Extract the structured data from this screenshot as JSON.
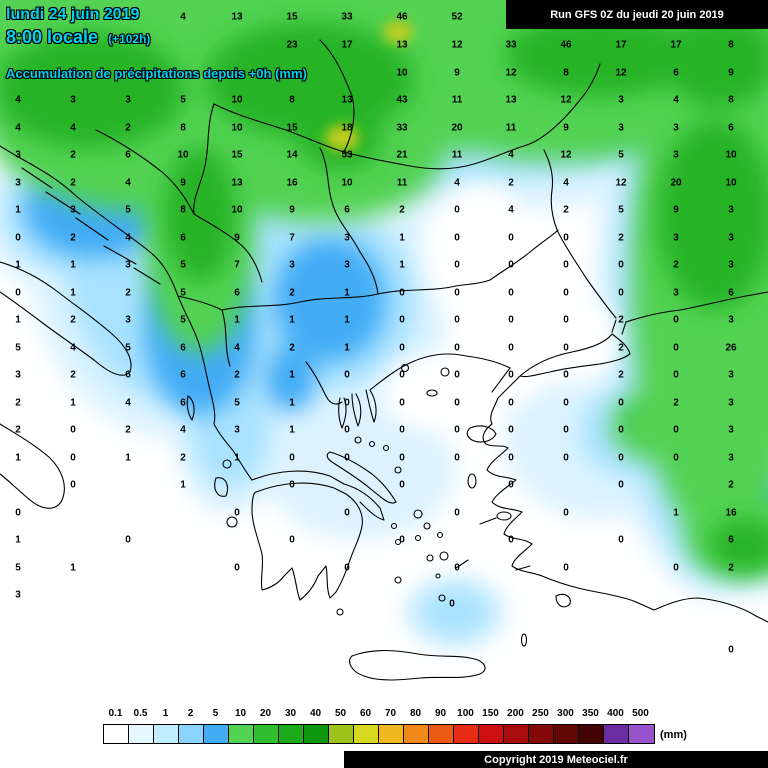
{
  "header": {
    "date_line": "lundi 24 juin 2019",
    "time_line": "8:00 locale",
    "forecast_offset": "(+102h)",
    "subtitle": "Accumulation de précipitations depuis +0h (mm)",
    "accent_color": "#00D2F0"
  },
  "run_banner": {
    "text": "Run GFS 0Z du jeudi 20 juin 2019",
    "bg": "#000000",
    "fg": "#FFFFFF"
  },
  "footer": {
    "copyright": "Copyright 2019 Meteociel.fr",
    "bg": "#000000",
    "fg": "#FFFFFF"
  },
  "legend": {
    "unit": "(mm)",
    "labels": [
      "0.1",
      "0.5",
      "1",
      "2",
      "5",
      "10",
      "20",
      "30",
      "40",
      "50",
      "60",
      "70",
      "80",
      "90",
      "100",
      "150",
      "200",
      "250",
      "300",
      "350",
      "400",
      "500"
    ],
    "colors": [
      "#FFFFFF",
      "#E4F6FF",
      "#C2ECFF",
      "#8AD3FF",
      "#42ACF5",
      "#52D252",
      "#2EBE2E",
      "#1AAA1A",
      "#0E960E",
      "#9EC41C",
      "#D8D820",
      "#F0B81E",
      "#F0881A",
      "#EC5A14",
      "#E62C12",
      "#CC1010",
      "#A80C0C",
      "#840808",
      "#620505",
      "#430303",
      "#6A2EA2",
      "#9852CC"
    ]
  },
  "map": {
    "background": "#FFFFFF",
    "values": [
      [
        183,
        17,
        "4"
      ],
      [
        237,
        17,
        "13"
      ],
      [
        292,
        17,
        "15"
      ],
      [
        347,
        17,
        "33"
      ],
      [
        402,
        17,
        "46"
      ],
      [
        457,
        17,
        "52"
      ],
      [
        292,
        45,
        "23"
      ],
      [
        347,
        45,
        "17"
      ],
      [
        402,
        45,
        "13"
      ],
      [
        457,
        45,
        "12"
      ],
      [
        511,
        45,
        "33"
      ],
      [
        566,
        45,
        "46"
      ],
      [
        621,
        45,
        "17"
      ],
      [
        676,
        45,
        "17"
      ],
      [
        731,
        45,
        "8"
      ],
      [
        402,
        73,
        "10"
      ],
      [
        457,
        73,
        "9"
      ],
      [
        511,
        73,
        "12"
      ],
      [
        566,
        73,
        "8"
      ],
      [
        621,
        73,
        "12"
      ],
      [
        676,
        73,
        "6"
      ],
      [
        731,
        73,
        "9"
      ],
      [
        18,
        100,
        "4"
      ],
      [
        73,
        100,
        "3"
      ],
      [
        128,
        100,
        "3"
      ],
      [
        183,
        100,
        "5"
      ],
      [
        237,
        100,
        "10"
      ],
      [
        292,
        100,
        "8"
      ],
      [
        347,
        100,
        "13"
      ],
      [
        402,
        100,
        "43"
      ],
      [
        457,
        100,
        "11"
      ],
      [
        511,
        100,
        "13"
      ],
      [
        566,
        100,
        "12"
      ],
      [
        621,
        100,
        "3"
      ],
      [
        676,
        100,
        "4"
      ],
      [
        731,
        100,
        "8"
      ],
      [
        18,
        128,
        "4"
      ],
      [
        73,
        128,
        "4"
      ],
      [
        128,
        128,
        "2"
      ],
      [
        183,
        128,
        "8"
      ],
      [
        237,
        128,
        "10"
      ],
      [
        292,
        128,
        "15"
      ],
      [
        347,
        128,
        "18"
      ],
      [
        402,
        128,
        "33"
      ],
      [
        457,
        128,
        "20"
      ],
      [
        511,
        128,
        "11"
      ],
      [
        566,
        128,
        "9"
      ],
      [
        621,
        128,
        "3"
      ],
      [
        676,
        128,
        "3"
      ],
      [
        731,
        128,
        "6"
      ],
      [
        18,
        155,
        "3"
      ],
      [
        73,
        155,
        "2"
      ],
      [
        128,
        155,
        "6"
      ],
      [
        183,
        155,
        "10"
      ],
      [
        237,
        155,
        "15"
      ],
      [
        292,
        155,
        "14"
      ],
      [
        347,
        155,
        "53"
      ],
      [
        402,
        155,
        "21"
      ],
      [
        457,
        155,
        "11"
      ],
      [
        511,
        155,
        "4"
      ],
      [
        566,
        155,
        "12"
      ],
      [
        621,
        155,
        "5"
      ],
      [
        676,
        155,
        "3"
      ],
      [
        731,
        155,
        "10"
      ],
      [
        18,
        183,
        "3"
      ],
      [
        73,
        183,
        "2"
      ],
      [
        128,
        183,
        "4"
      ],
      [
        183,
        183,
        "9"
      ],
      [
        237,
        183,
        "13"
      ],
      [
        292,
        183,
        "16"
      ],
      [
        347,
        183,
        "10"
      ],
      [
        402,
        183,
        "11"
      ],
      [
        457,
        183,
        "4"
      ],
      [
        511,
        183,
        "2"
      ],
      [
        566,
        183,
        "4"
      ],
      [
        621,
        183,
        "12"
      ],
      [
        676,
        183,
        "20"
      ],
      [
        731,
        183,
        "10"
      ],
      [
        18,
        210,
        "1"
      ],
      [
        73,
        210,
        "3"
      ],
      [
        128,
        210,
        "5"
      ],
      [
        183,
        210,
        "8"
      ],
      [
        237,
        210,
        "10"
      ],
      [
        292,
        210,
        "9"
      ],
      [
        347,
        210,
        "6"
      ],
      [
        402,
        210,
        "2"
      ],
      [
        457,
        210,
        "0"
      ],
      [
        511,
        210,
        "4"
      ],
      [
        566,
        210,
        "2"
      ],
      [
        621,
        210,
        "5"
      ],
      [
        676,
        210,
        "9"
      ],
      [
        731,
        210,
        "3"
      ],
      [
        18,
        238,
        "0"
      ],
      [
        73,
        238,
        "2"
      ],
      [
        128,
        238,
        "4"
      ],
      [
        183,
        238,
        "6"
      ],
      [
        237,
        238,
        "9"
      ],
      [
        292,
        238,
        "7"
      ],
      [
        347,
        238,
        "3"
      ],
      [
        402,
        238,
        "1"
      ],
      [
        457,
        238,
        "0"
      ],
      [
        511,
        238,
        "0"
      ],
      [
        566,
        238,
        "0"
      ],
      [
        621,
        238,
        "2"
      ],
      [
        676,
        238,
        "3"
      ],
      [
        731,
        238,
        "3"
      ],
      [
        18,
        265,
        "1"
      ],
      [
        73,
        265,
        "1"
      ],
      [
        128,
        265,
        "3"
      ],
      [
        183,
        265,
        "5"
      ],
      [
        237,
        265,
        "7"
      ],
      [
        292,
        265,
        "3"
      ],
      [
        347,
        265,
        "3"
      ],
      [
        402,
        265,
        "1"
      ],
      [
        457,
        265,
        "0"
      ],
      [
        511,
        265,
        "0"
      ],
      [
        566,
        265,
        "0"
      ],
      [
        621,
        265,
        "0"
      ],
      [
        676,
        265,
        "2"
      ],
      [
        731,
        265,
        "3"
      ],
      [
        18,
        293,
        "0"
      ],
      [
        73,
        293,
        "1"
      ],
      [
        128,
        293,
        "2"
      ],
      [
        183,
        293,
        "5"
      ],
      [
        237,
        293,
        "6"
      ],
      [
        292,
        293,
        "2"
      ],
      [
        347,
        293,
        "1"
      ],
      [
        402,
        293,
        "0"
      ],
      [
        457,
        293,
        "0"
      ],
      [
        511,
        293,
        "0"
      ],
      [
        566,
        293,
        "0"
      ],
      [
        621,
        293,
        "0"
      ],
      [
        676,
        293,
        "3"
      ],
      [
        731,
        293,
        "6"
      ],
      [
        18,
        320,
        "1"
      ],
      [
        73,
        320,
        "2"
      ],
      [
        128,
        320,
        "3"
      ],
      [
        183,
        320,
        "5"
      ],
      [
        237,
        320,
        "1"
      ],
      [
        292,
        320,
        "1"
      ],
      [
        347,
        320,
        "1"
      ],
      [
        402,
        320,
        "0"
      ],
      [
        457,
        320,
        "0"
      ],
      [
        511,
        320,
        "0"
      ],
      [
        566,
        320,
        "0"
      ],
      [
        621,
        320,
        "2"
      ],
      [
        676,
        320,
        "0"
      ],
      [
        731,
        320,
        "3"
      ],
      [
        18,
        348,
        "5"
      ],
      [
        73,
        348,
        "4"
      ],
      [
        128,
        348,
        "5"
      ],
      [
        183,
        348,
        "6"
      ],
      [
        237,
        348,
        "4"
      ],
      [
        292,
        348,
        "2"
      ],
      [
        347,
        348,
        "1"
      ],
      [
        402,
        348,
        "0"
      ],
      [
        457,
        348,
        "0"
      ],
      [
        511,
        348,
        "0"
      ],
      [
        566,
        348,
        "0"
      ],
      [
        621,
        348,
        "2"
      ],
      [
        676,
        348,
        "0"
      ],
      [
        731,
        348,
        "26"
      ],
      [
        18,
        375,
        "3"
      ],
      [
        73,
        375,
        "2"
      ],
      [
        128,
        375,
        "6"
      ],
      [
        183,
        375,
        "6"
      ],
      [
        237,
        375,
        "2"
      ],
      [
        292,
        375,
        "1"
      ],
      [
        347,
        375,
        "0"
      ],
      [
        402,
        375,
        "0"
      ],
      [
        457,
        375,
        "0"
      ],
      [
        511,
        375,
        "0"
      ],
      [
        566,
        375,
        "0"
      ],
      [
        621,
        375,
        "2"
      ],
      [
        676,
        375,
        "0"
      ],
      [
        731,
        375,
        "3"
      ],
      [
        18,
        403,
        "2"
      ],
      [
        73,
        403,
        "1"
      ],
      [
        128,
        403,
        "4"
      ],
      [
        183,
        403,
        "6"
      ],
      [
        237,
        403,
        "5"
      ],
      [
        292,
        403,
        "1"
      ],
      [
        347,
        403,
        "0"
      ],
      [
        402,
        403,
        "0"
      ],
      [
        457,
        403,
        "0"
      ],
      [
        511,
        403,
        "0"
      ],
      [
        566,
        403,
        "0"
      ],
      [
        621,
        403,
        "0"
      ],
      [
        676,
        403,
        "2"
      ],
      [
        731,
        403,
        "3"
      ],
      [
        18,
        430,
        "2"
      ],
      [
        73,
        430,
        "0"
      ],
      [
        128,
        430,
        "2"
      ],
      [
        183,
        430,
        "4"
      ],
      [
        237,
        430,
        "3"
      ],
      [
        292,
        430,
        "1"
      ],
      [
        347,
        430,
        "0"
      ],
      [
        402,
        430,
        "0"
      ],
      [
        457,
        430,
        "0"
      ],
      [
        511,
        430,
        "0"
      ],
      [
        566,
        430,
        "0"
      ],
      [
        621,
        430,
        "0"
      ],
      [
        676,
        430,
        "0"
      ],
      [
        731,
        430,
        "3"
      ],
      [
        18,
        458,
        "1"
      ],
      [
        73,
        458,
        "0"
      ],
      [
        128,
        458,
        "1"
      ],
      [
        183,
        458,
        "2"
      ],
      [
        237,
        458,
        "1"
      ],
      [
        292,
        458,
        "0"
      ],
      [
        347,
        458,
        "0"
      ],
      [
        402,
        458,
        "0"
      ],
      [
        457,
        458,
        "0"
      ],
      [
        511,
        458,
        "0"
      ],
      [
        566,
        458,
        "0"
      ],
      [
        621,
        458,
        "0"
      ],
      [
        676,
        458,
        "0"
      ],
      [
        731,
        458,
        "3"
      ],
      [
        73,
        485,
        "0"
      ],
      [
        183,
        485,
        "1"
      ],
      [
        292,
        485,
        "0"
      ],
      [
        402,
        485,
        "0"
      ],
      [
        511,
        485,
        "0"
      ],
      [
        621,
        485,
        "0"
      ],
      [
        731,
        485,
        "2"
      ],
      [
        18,
        513,
        "0"
      ],
      [
        237,
        513,
        "0"
      ],
      [
        347,
        513,
        "0"
      ],
      [
        457,
        513,
        "0"
      ],
      [
        566,
        513,
        "0"
      ],
      [
        676,
        513,
        "1"
      ],
      [
        731,
        513,
        "16"
      ],
      [
        18,
        540,
        "1"
      ],
      [
        128,
        540,
        "0"
      ],
      [
        292,
        540,
        "0"
      ],
      [
        402,
        540,
        "0"
      ],
      [
        511,
        540,
        "0"
      ],
      [
        621,
        540,
        "0"
      ],
      [
        731,
        540,
        "6"
      ],
      [
        18,
        568,
        "5"
      ],
      [
        73,
        568,
        "1"
      ],
      [
        237,
        568,
        "0"
      ],
      [
        347,
        568,
        "0"
      ],
      [
        457,
        568,
        "0"
      ],
      [
        566,
        568,
        "0"
      ],
      [
        676,
        568,
        "0"
      ],
      [
        731,
        568,
        "2"
      ],
      [
        18,
        595,
        "3"
      ],
      [
        452,
        604,
        "0"
      ],
      [
        731,
        650,
        "0"
      ]
    ]
  }
}
